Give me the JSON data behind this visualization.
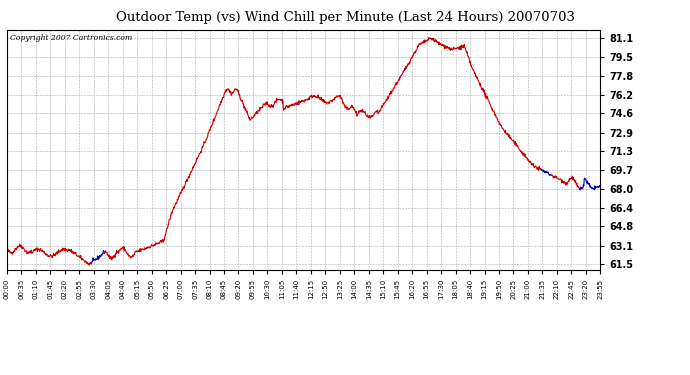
{
  "title": "Outdoor Temp (vs) Wind Chill per Minute (Last 24 Hours) 20070703",
  "copyright": "Copyright 2007 Cartronics.com",
  "background_color": "#ffffff",
  "plot_bg_color": "#ffffff",
  "grid_color": "#aaaaaa",
  "line_color_red": "#cc0000",
  "line_color_blue": "#0000cc",
  "yticks": [
    61.5,
    63.1,
    64.8,
    66.4,
    68.0,
    69.7,
    71.3,
    72.9,
    74.6,
    76.2,
    77.8,
    79.5,
    81.1
  ],
  "ylim": [
    61.0,
    81.8
  ],
  "xtick_labels": [
    "00:00",
    "00:35",
    "01:10",
    "01:45",
    "02:20",
    "02:55",
    "03:30",
    "04:05",
    "04:40",
    "05:15",
    "05:50",
    "06:25",
    "07:00",
    "07:35",
    "08:10",
    "08:45",
    "09:20",
    "09:55",
    "10:30",
    "11:05",
    "11:40",
    "12:15",
    "12:50",
    "13:25",
    "14:00",
    "14:35",
    "15:10",
    "15:45",
    "16:20",
    "16:55",
    "17:30",
    "18:05",
    "18:40",
    "19:15",
    "19:50",
    "20:25",
    "21:00",
    "21:35",
    "22:10",
    "22:45",
    "23:20",
    "23:55"
  ],
  "num_points": 1440,
  "figwidth": 6.9,
  "figheight": 3.75,
  "dpi": 100
}
